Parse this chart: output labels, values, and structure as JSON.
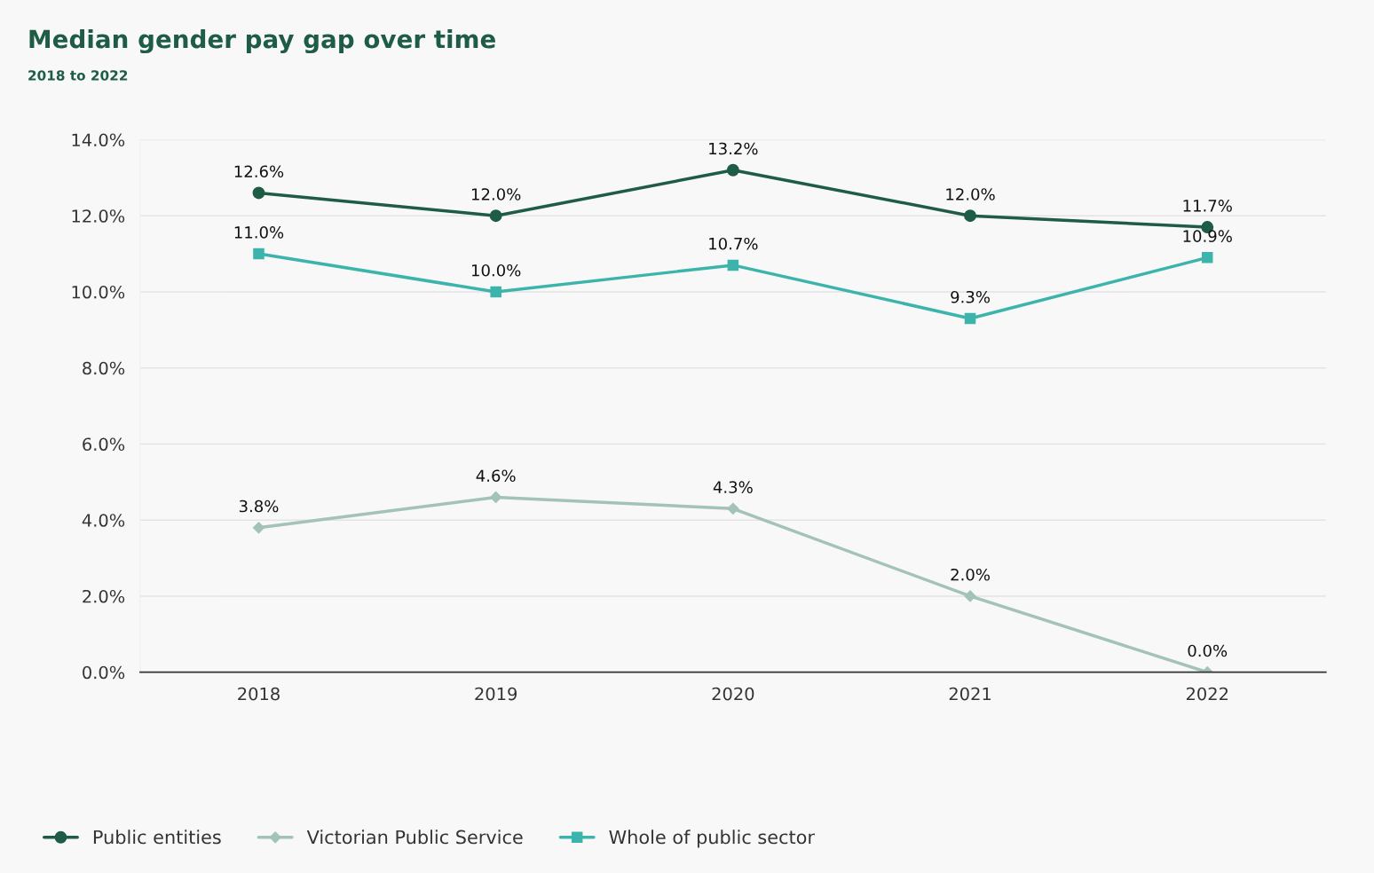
{
  "chart_data": {
    "type": "line",
    "title": "Median gender pay gap over time",
    "subtitle": "2018 to 2022",
    "categories": [
      "2018",
      "2019",
      "2020",
      "2021",
      "2022"
    ],
    "series": [
      {
        "name": "Public entities",
        "color": "#1e5c45",
        "marker": "circle",
        "values": [
          12.6,
          12.0,
          13.2,
          12.0,
          11.7
        ],
        "value_labels": [
          "12.6%",
          "12.0%",
          "13.2%",
          "12.0%",
          "11.7%"
        ]
      },
      {
        "name": "Victorian Public Service",
        "color": "#a3c2b8",
        "marker": "diamond",
        "values": [
          3.8,
          4.6,
          4.3,
          2.0,
          0.0
        ],
        "value_labels": [
          "3.8%",
          "4.6%",
          "4.3%",
          "2.0%",
          "0.0%"
        ]
      },
      {
        "name": "Whole of public sector",
        "color": "#3cb4ac",
        "marker": "square",
        "values": [
          11.0,
          10.0,
          10.7,
          9.3,
          10.9
        ],
        "value_labels": [
          "11.0%",
          "10.0%",
          "10.7%",
          "9.3%",
          "10.9%"
        ]
      }
    ],
    "ylim": [
      0,
      14
    ],
    "yticks": [
      {
        "value": 0,
        "label": "0.0%"
      },
      {
        "value": 2,
        "label": "2.0%"
      },
      {
        "value": 4,
        "label": "4.0%"
      },
      {
        "value": 6,
        "label": "6.0%"
      },
      {
        "value": 8,
        "label": "8.0%"
      },
      {
        "value": 10,
        "label": "10.0%"
      },
      {
        "value": 12,
        "label": "12.0%"
      },
      {
        "value": 14,
        "label": "14.0%"
      }
    ],
    "grid": "y",
    "legend": "bottom left",
    "line_style": "solid"
  }
}
